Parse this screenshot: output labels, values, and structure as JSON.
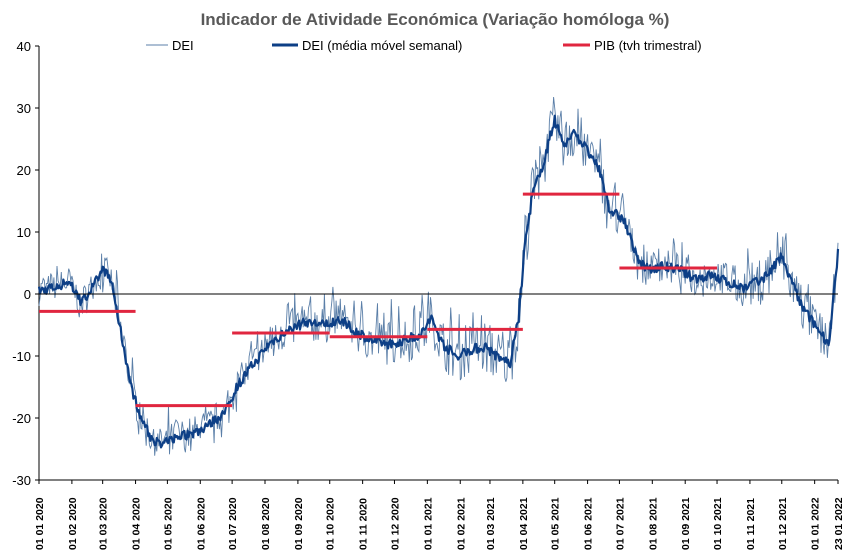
{
  "chart_data": {
    "type": "line",
    "title": "Indicador de Atividade Económica (Variação homóloga %)",
    "ylim": [
      -30,
      40
    ],
    "yticks": [
      40,
      30,
      20,
      10,
      0,
      -10,
      -20,
      -30
    ],
    "x_range": [
      "2020-01-01",
      "2022-01-23"
    ],
    "xticks": [
      "01 01 2020",
      "01 02 2020",
      "01 03 2020",
      "01 04 2020",
      "01 05 2020",
      "01 06 2020",
      "01 07 2020",
      "01 08 2020",
      "01 09 2020",
      "01 10 2020",
      "01 11 2020",
      "01 12 2020",
      "01 01 2021",
      "01 02 2021",
      "01 03 2021",
      "01 04 2021",
      "01 05 2021",
      "01 06 2021",
      "01 07 2021",
      "01 08 2021",
      "01 09 2021",
      "01 10 2021",
      "01 11 2021",
      "01 12 2021",
      "01 01 2022",
      "23 01 2022"
    ],
    "legend": [
      "DEI",
      "DEI (média móvel semanal)",
      "PIB (tvh trimestral)"
    ],
    "colors": {
      "dei": "#5b7fa8",
      "dei_mm": "#0d3f86",
      "pib": "#e0263f",
      "axis": "#000000",
      "title": "#595959"
    },
    "pib_quarterly": [
      {
        "start": "2020-01-01",
        "end": "2020-04-01",
        "value": -2.8
      },
      {
        "start": "2020-04-01",
        "end": "2020-07-01",
        "value": -18.0
      },
      {
        "start": "2020-07-01",
        "end": "2020-10-01",
        "value": -6.3
      },
      {
        "start": "2020-10-01",
        "end": "2021-01-01",
        "value": -6.9
      },
      {
        "start": "2021-01-01",
        "end": "2021-04-01",
        "value": -5.7
      },
      {
        "start": "2021-04-01",
        "end": "2021-07-01",
        "value": 16.1
      },
      {
        "start": "2021-07-01",
        "end": "2021-10-01",
        "value": 4.2
      }
    ],
    "dei_moving_avg_anchors": [
      [
        "2020-01-01",
        0.5
      ],
      [
        "2020-01-15",
        1.0
      ],
      [
        "2020-01-29",
        2.0
      ],
      [
        "2020-02-10",
        -1.5
      ],
      [
        "2020-02-20",
        1.0
      ],
      [
        "2020-03-02",
        4.0
      ],
      [
        "2020-03-10",
        1.5
      ],
      [
        "2020-03-18",
        -6.0
      ],
      [
        "2020-03-28",
        -15.0
      ],
      [
        "2020-04-06",
        -20.0
      ],
      [
        "2020-04-15",
        -23.0
      ],
      [
        "2020-04-25",
        -24.5
      ],
      [
        "2020-05-10",
        -23.0
      ],
      [
        "2020-05-25",
        -22.5
      ],
      [
        "2020-06-10",
        -21.0
      ],
      [
        "2020-06-25",
        -19.0
      ],
      [
        "2020-07-05",
        -15.0
      ],
      [
        "2020-07-20",
        -11.5
      ],
      [
        "2020-08-05",
        -8.0
      ],
      [
        "2020-08-25",
        -5.5
      ],
      [
        "2020-09-10",
        -4.5
      ],
      [
        "2020-09-25",
        -5.0
      ],
      [
        "2020-10-10",
        -4.0
      ],
      [
        "2020-10-25",
        -6.0
      ],
      [
        "2020-11-10",
        -7.5
      ],
      [
        "2020-11-25",
        -8.0
      ],
      [
        "2020-12-10",
        -7.5
      ],
      [
        "2020-12-25",
        -6.5
      ],
      [
        "2021-01-05",
        -4.0
      ],
      [
        "2021-01-15",
        -8.0
      ],
      [
        "2021-01-28",
        -10.0
      ],
      [
        "2021-02-10",
        -9.0
      ],
      [
        "2021-02-25",
        -8.5
      ],
      [
        "2021-03-10",
        -10.5
      ],
      [
        "2021-03-20",
        -11.0
      ],
      [
        "2021-03-28",
        -4.0
      ],
      [
        "2021-04-03",
        8.0
      ],
      [
        "2021-04-10",
        16.0
      ],
      [
        "2021-04-20",
        21.0
      ],
      [
        "2021-05-01",
        28.0
      ],
      [
        "2021-05-10",
        24.0
      ],
      [
        "2021-05-20",
        26.0
      ],
      [
        "2021-06-01",
        23.0
      ],
      [
        "2021-06-12",
        20.0
      ],
      [
        "2021-06-22",
        13.5
      ],
      [
        "2021-07-05",
        12.0
      ],
      [
        "2021-07-15",
        7.0
      ],
      [
        "2021-07-25",
        4.0
      ],
      [
        "2021-08-10",
        4.5
      ],
      [
        "2021-08-25",
        4.0
      ],
      [
        "2021-09-10",
        2.5
      ],
      [
        "2021-09-25",
        3.0
      ],
      [
        "2021-10-10",
        2.0
      ],
      [
        "2021-10-25",
        1.0
      ],
      [
        "2021-11-10",
        2.0
      ],
      [
        "2021-11-22",
        4.0
      ],
      [
        "2021-12-01",
        6.0
      ],
      [
        "2021-12-10",
        2.0
      ],
      [
        "2021-12-20",
        -2.0
      ],
      [
        "2022-01-05",
        -6.0
      ],
      [
        "2022-01-15",
        -8.0
      ],
      [
        "2022-01-19",
        0.0
      ],
      [
        "2022-01-23",
        6.5
      ]
    ],
    "dei_daily_spike_amplitude": [
      [
        "2020-01-01",
        3.0
      ],
      [
        "2020-03-15",
        3.5
      ],
      [
        "2020-04-01",
        3.5
      ],
      [
        "2020-07-01",
        3.5
      ],
      [
        "2020-10-01",
        4.0
      ],
      [
        "2021-01-01",
        5.0
      ],
      [
        "2021-04-01",
        6.0
      ],
      [
        "2021-06-15",
        5.0
      ],
      [
        "2021-07-15",
        3.5
      ],
      [
        "2021-10-01",
        3.5
      ],
      [
        "2021-12-01",
        5.5
      ],
      [
        "2022-01-23",
        4.0
      ]
    ]
  }
}
